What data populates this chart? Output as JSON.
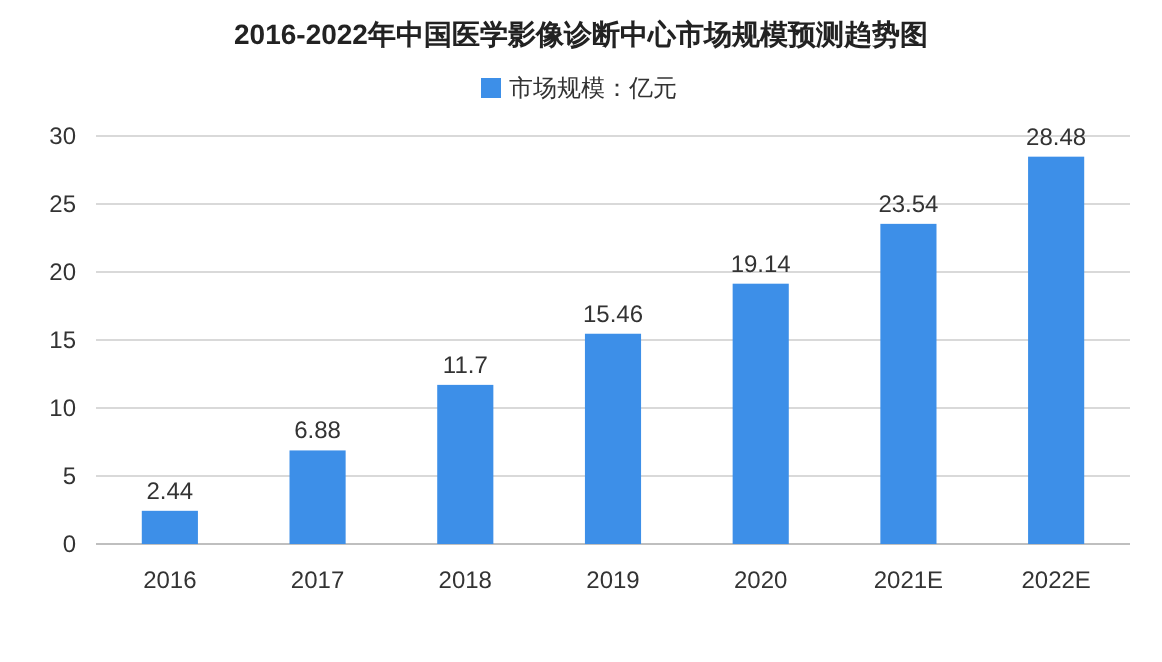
{
  "chart_data": {
    "type": "bar",
    "title": "2016-2022年中国医学影像诊断中心市场规模预测趋势图",
    "categories": [
      "2016",
      "2017",
      "2018",
      "2019",
      "2020",
      "2021E",
      "2022E"
    ],
    "series": [
      {
        "name": "市场规模：亿元",
        "color": "#3d8fe8",
        "values": [
          2.44,
          6.88,
          11.7,
          15.46,
          19.14,
          23.54,
          28.48
        ]
      }
    ],
    "ylim": [
      0,
      30
    ],
    "yticks": [
      0,
      5,
      10,
      15,
      20,
      25,
      30
    ],
    "grid": "y",
    "legend": "top",
    "data_labels": true
  }
}
